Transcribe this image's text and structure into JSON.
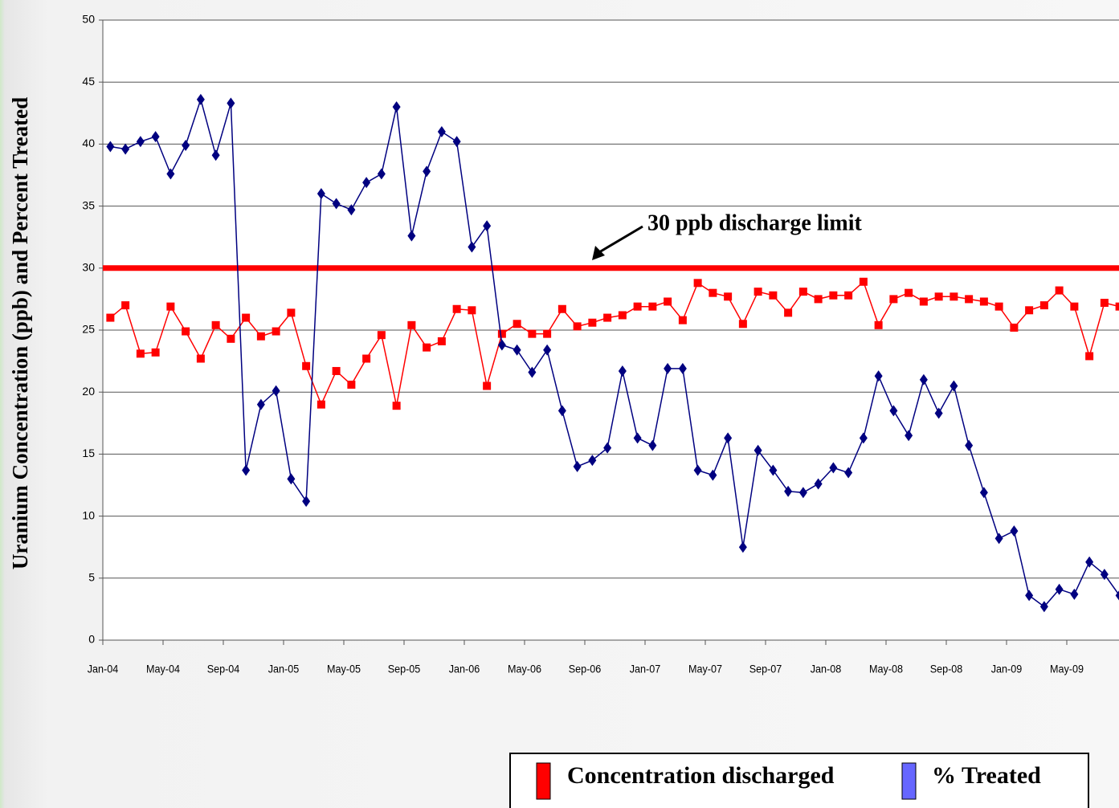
{
  "chart_data": {
    "type": "line",
    "y_axis_label": "Uranium Concentration (ppb) and Percent Treated",
    "categories": [
      "Jan-04",
      null,
      null,
      null,
      "May-04",
      null,
      null,
      null,
      "Sep-04",
      null,
      null,
      null,
      "Jan-05",
      null,
      null,
      null,
      "May-05",
      null,
      null,
      null,
      "Sep-05",
      null,
      null,
      null,
      "Jan-06",
      null,
      null,
      null,
      "May-06",
      null,
      null,
      null,
      "Sep-06",
      null,
      null,
      null,
      "Jan-07",
      null,
      null,
      null,
      "May-07",
      null,
      null,
      null,
      "Sep-07",
      null,
      null,
      null,
      "Jan-08",
      null,
      null,
      null,
      "May-08",
      null,
      null,
      null,
      "Sep-08",
      null,
      null,
      null,
      "Jan-09",
      null,
      null,
      null,
      "May-09",
      null,
      null,
      null
    ],
    "series": [
      {
        "name": "Concentration discharged",
        "color": "#ff0000",
        "legend_color": "#ff0000",
        "marker": "square",
        "values": [
          26.0,
          27.0,
          23.1,
          23.2,
          26.9,
          24.9,
          22.7,
          25.4,
          24.3,
          26.0,
          24.5,
          24.9,
          26.4,
          22.1,
          19.0,
          21.7,
          20.6,
          22.7,
          24.6,
          18.9,
          25.4,
          23.6,
          24.1,
          26.7,
          26.6,
          20.5,
          24.7,
          25.5,
          24.7,
          24.7,
          26.7,
          25.3,
          25.6,
          26.0,
          26.2,
          26.9,
          26.9,
          27.3,
          25.8,
          28.8,
          28.0,
          27.7,
          25.5,
          28.1,
          27.8,
          26.4,
          28.1,
          27.5,
          27.8,
          27.8,
          28.9,
          25.4,
          27.5,
          28.0,
          27.3,
          27.7,
          27.7,
          27.5,
          27.3,
          26.9,
          25.2,
          26.6,
          27.0,
          28.2,
          26.9,
          22.9,
          27.2,
          26.9
        ]
      },
      {
        "name": "% Treated",
        "color": "#000080",
        "legend_color": "#6666ff",
        "marker": "diamond",
        "values": [
          39.8,
          39.6,
          40.2,
          40.6,
          37.6,
          39.9,
          43.6,
          39.1,
          43.3,
          13.7,
          19.0,
          20.1,
          13.0,
          11.2,
          36.0,
          35.2,
          34.7,
          36.9,
          37.6,
          43.0,
          32.6,
          37.8,
          41.0,
          40.2,
          31.7,
          33.4,
          23.8,
          23.4,
          21.6,
          23.4,
          18.5,
          14.0,
          14.5,
          15.5,
          21.7,
          16.3,
          15.7,
          21.9,
          21.9,
          13.7,
          13.3,
          16.3,
          7.5,
          15.3,
          13.7,
          12.0,
          11.9,
          12.6,
          13.9,
          13.5,
          16.3,
          21.3,
          18.5,
          16.5,
          21.0,
          18.3,
          20.5,
          15.7,
          11.9,
          8.2,
          8.8,
          3.6,
          2.7,
          4.1,
          3.7,
          6.3,
          5.3,
          3.6
        ]
      }
    ],
    "ylim": [
      0,
      50
    ],
    "yticks": [
      0,
      5,
      10,
      15,
      20,
      25,
      30,
      35,
      40,
      45,
      50
    ],
    "grid": true,
    "reference_line": {
      "value": 30,
      "color": "#ff0000"
    },
    "annotation": "30 ppb discharge limit",
    "legend": "bottom-right"
  }
}
